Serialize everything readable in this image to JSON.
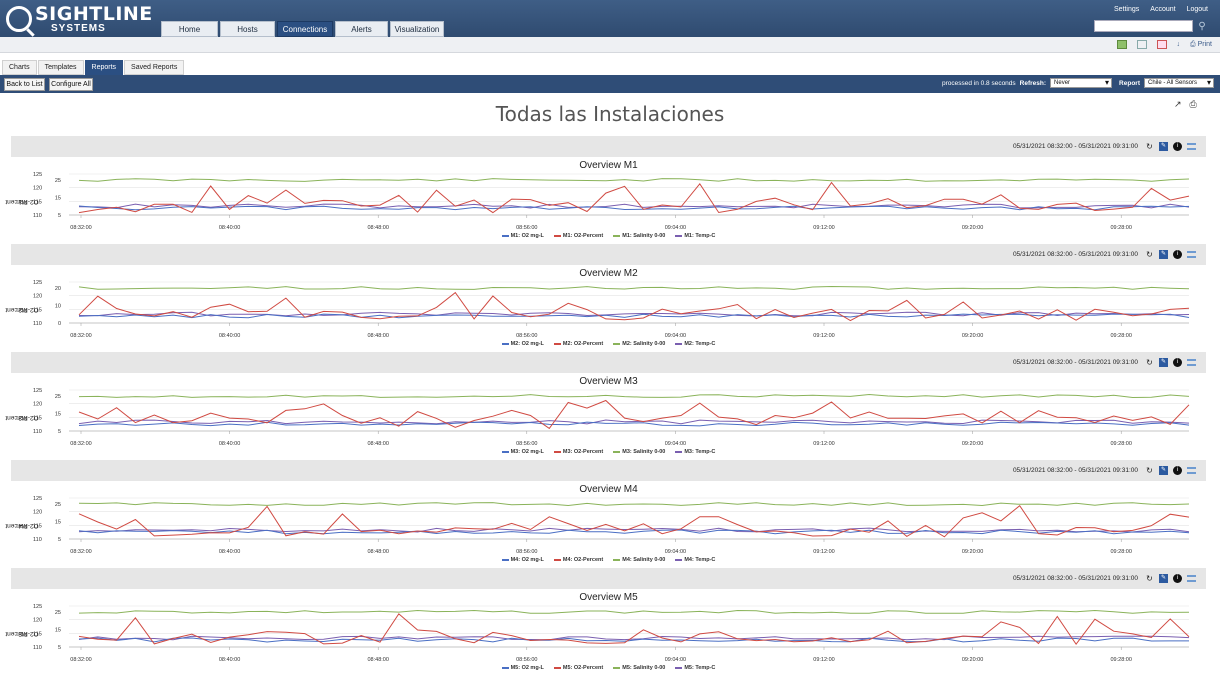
{
  "app": {
    "logo_name": "SIGHTLINE",
    "logo_sub": "SYSTEMS",
    "nav_tabs": [
      {
        "label": "Home",
        "active": false
      },
      {
        "label": "Hosts",
        "active": false
      },
      {
        "label": "Connections",
        "active": true
      },
      {
        "label": "Alerts",
        "active": false
      },
      {
        "label": "Visualization",
        "active": false
      }
    ],
    "top_links": [
      "Settings",
      "Account",
      "Logout"
    ],
    "search_placeholder": "",
    "print_label": "Print"
  },
  "subtabs": [
    {
      "label": "Charts",
      "active": false
    },
    {
      "label": "Templates",
      "active": false
    },
    {
      "label": "Reports",
      "active": true
    },
    {
      "label": "Saved Reports",
      "active": false
    }
  ],
  "actionbar": {
    "back_label": "Back to List",
    "configure_label": "Configure All",
    "processed_text": "processed in 0.8 seconds",
    "refresh_label": "Refresh:",
    "refresh_value": "Never",
    "report_label": "Report",
    "report_value": "Chile - All Sensors"
  },
  "page_title": "Todas las Instalaciones",
  "colors": {
    "o2": "#4a6fc4",
    "o2pct": "#d04a42",
    "salinity": "#8ab35a",
    "temp": "#7a5fb0",
    "grid": "#e3e3e3"
  },
  "panels": [
    {
      "range": "05/31/2021 08:32:00 - 05/31/2021 09:31:00",
      "title": "Overview M1",
      "ylabel_line1": "M1:",
      "ylabel_line2": "O2-Percent",
      "legend": [
        "M1: O2 mg-L",
        "M1: O2-Percent",
        "M1: Salinity 0-00",
        "M1: Temp-C"
      ],
      "seed": 11
    },
    {
      "range": "05/31/2021 08:32:00 - 05/31/2021 09:31:00",
      "title": "Overview M2",
      "ylabel_line1": "M2:",
      "ylabel_line2": "O2-Percent",
      "legend": [
        "M2: O2 mg-L",
        "M2: O2-Percent",
        "M2: Salinity 0-00",
        "M2: Temp-C"
      ],
      "seed": 23
    },
    {
      "range": "05/31/2021 08:32:00 - 05/31/2021 09:31:00",
      "title": "Overview M3",
      "ylabel_line1": "M3:",
      "ylabel_line2": "O2-Percent",
      "legend": [
        "M3: O2 mg-L",
        "M3: O2-Percent",
        "M3: Salinity 0-00",
        "M3: Temp-C"
      ],
      "seed": 37
    },
    {
      "range": "05/31/2021 08:32:00 - 05/31/2021 09:31:00",
      "title": "Overview M4",
      "ylabel_line1": "M4:",
      "ylabel_line2": "O2-Percent",
      "legend": [
        "M4: O2 mg-L",
        "M4: O2-Percent",
        "M4: Salinity 0-00",
        "M4: Temp-C"
      ],
      "seed": 51
    },
    {
      "range": "05/31/2021 08:32:00 - 05/31/2021 09:31:00",
      "title": "Overview M5",
      "ylabel_line1": "M5:",
      "ylabel_line2": "O2-Percent",
      "legend": [
        "M5: O2 mg-L",
        "M5: O2-Percent",
        "M5: Salinity 0-00",
        "M5: Temp-C"
      ],
      "seed": 67
    }
  ],
  "chart_data": {
    "type": "line",
    "x_ticks": [
      "08:32:00",
      "08:40:00",
      "08:48:00",
      "08:56:00",
      "09:04:00",
      "09:12:00",
      "09:20:00",
      "09:28:00"
    ],
    "y_ticks_left": [
      "125",
      "120",
      "115",
      "110"
    ],
    "y_ticks_inner": [
      "25",
      "15",
      "5"
    ],
    "y_ticks_inner_m2": [
      "20",
      "10",
      "0"
    ],
    "ylim": [
      110,
      125
    ]
  }
}
